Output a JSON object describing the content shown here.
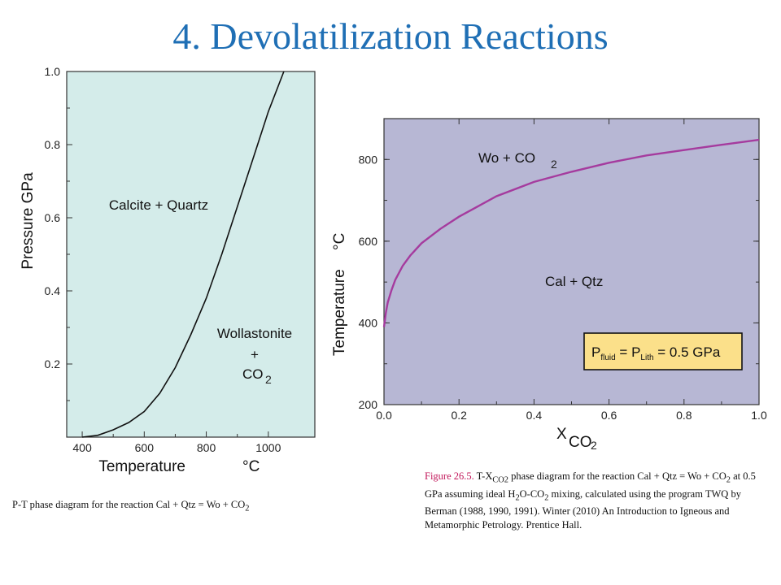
{
  "title": "4. Devolatilization Reactions",
  "chart_data": [
    {
      "type": "line",
      "xlabel": "Temperature",
      "xlabel_unit": "°C",
      "ylabel": "Pressure GPa",
      "xlim": [
        350,
        1150
      ],
      "ylim": [
        0,
        1.0
      ],
      "xticks": [
        400,
        600,
        800,
        1000
      ],
      "yticks": [
        0.2,
        0.4,
        0.6,
        0.8,
        1.0
      ],
      "ytick_labels": [
        "0.2",
        "0.4",
        "0.6",
        "0.8",
        "1.0"
      ],
      "series": [
        {
          "x": [
            400,
            450,
            500,
            550,
            600,
            650,
            700,
            750,
            800,
            850,
            900,
            950,
            1000,
            1050
          ],
          "y": [
            0.0,
            0.005,
            0.02,
            0.04,
            0.07,
            0.12,
            0.19,
            0.28,
            0.38,
            0.5,
            0.63,
            0.76,
            0.89,
            1.0
          ]
        }
      ],
      "annotations": {
        "upper": "Calcite + Quartz",
        "lower_line1": "Wollastonite",
        "lower_line2": "+",
        "lower_line3": "CO",
        "lower_sub": "2"
      },
      "background": "#d4ecea"
    },
    {
      "type": "line",
      "xlabel": "X",
      "xlabel_sub": "CO",
      "xlabel_sub2": "2",
      "ylabel": "Temperature",
      "ylabel_unit": "°C",
      "xlim": [
        0.0,
        1.0
      ],
      "ylim": [
        200,
        900
      ],
      "xticks": [
        0.0,
        0.2,
        0.4,
        0.6,
        0.8,
        1.0
      ],
      "xtick_labels": [
        "0.0",
        "0.2",
        "0.4",
        "0.6",
        "0.8",
        "1.0"
      ],
      "yticks": [
        200,
        400,
        600,
        800
      ],
      "series": [
        {
          "x": [
            0.0,
            0.005,
            0.01,
            0.02,
            0.03,
            0.05,
            0.07,
            0.1,
            0.15,
            0.2,
            0.3,
            0.4,
            0.5,
            0.6,
            0.7,
            0.8,
            0.9,
            1.0
          ],
          "y": [
            390,
            425,
            450,
            480,
            505,
            540,
            565,
            595,
            630,
            660,
            710,
            745,
            770,
            792,
            810,
            823,
            836,
            848
          ],
          "color": "#a53b9e"
        }
      ],
      "annotations": {
        "upper": "Wo + CO",
        "upper_sub": "2",
        "lower": "Cal + Qtz"
      },
      "box": {
        "p": "P",
        "fluid": "fluid",
        "eq": " = P",
        "lith": "Lith",
        "value": " = 0.5 GPa"
      },
      "background": "#b7b7d4"
    }
  ],
  "caption_left": {
    "text": "P-T phase diagram for the reaction Cal + Qtz = Wo + CO",
    "sub": "2"
  },
  "caption_right": {
    "fig": "Figure 26.5.",
    "t1": " T-X",
    "s1": "CO2",
    "t2": " phase diagram for the reaction Cal + Qtz = Wo + CO",
    "s2": "2",
    "t3": " at 0.5 GPa assuming ideal H",
    "s3": "2",
    "t4": "O-CO",
    "s4": "2",
    "t5": " mixing, calculated using the program TWQ by Berman (1988, 1990, 1991). Winter (2010) An Introduction to Igneous and Metamorphic Petrology. Prentice Hall."
  }
}
